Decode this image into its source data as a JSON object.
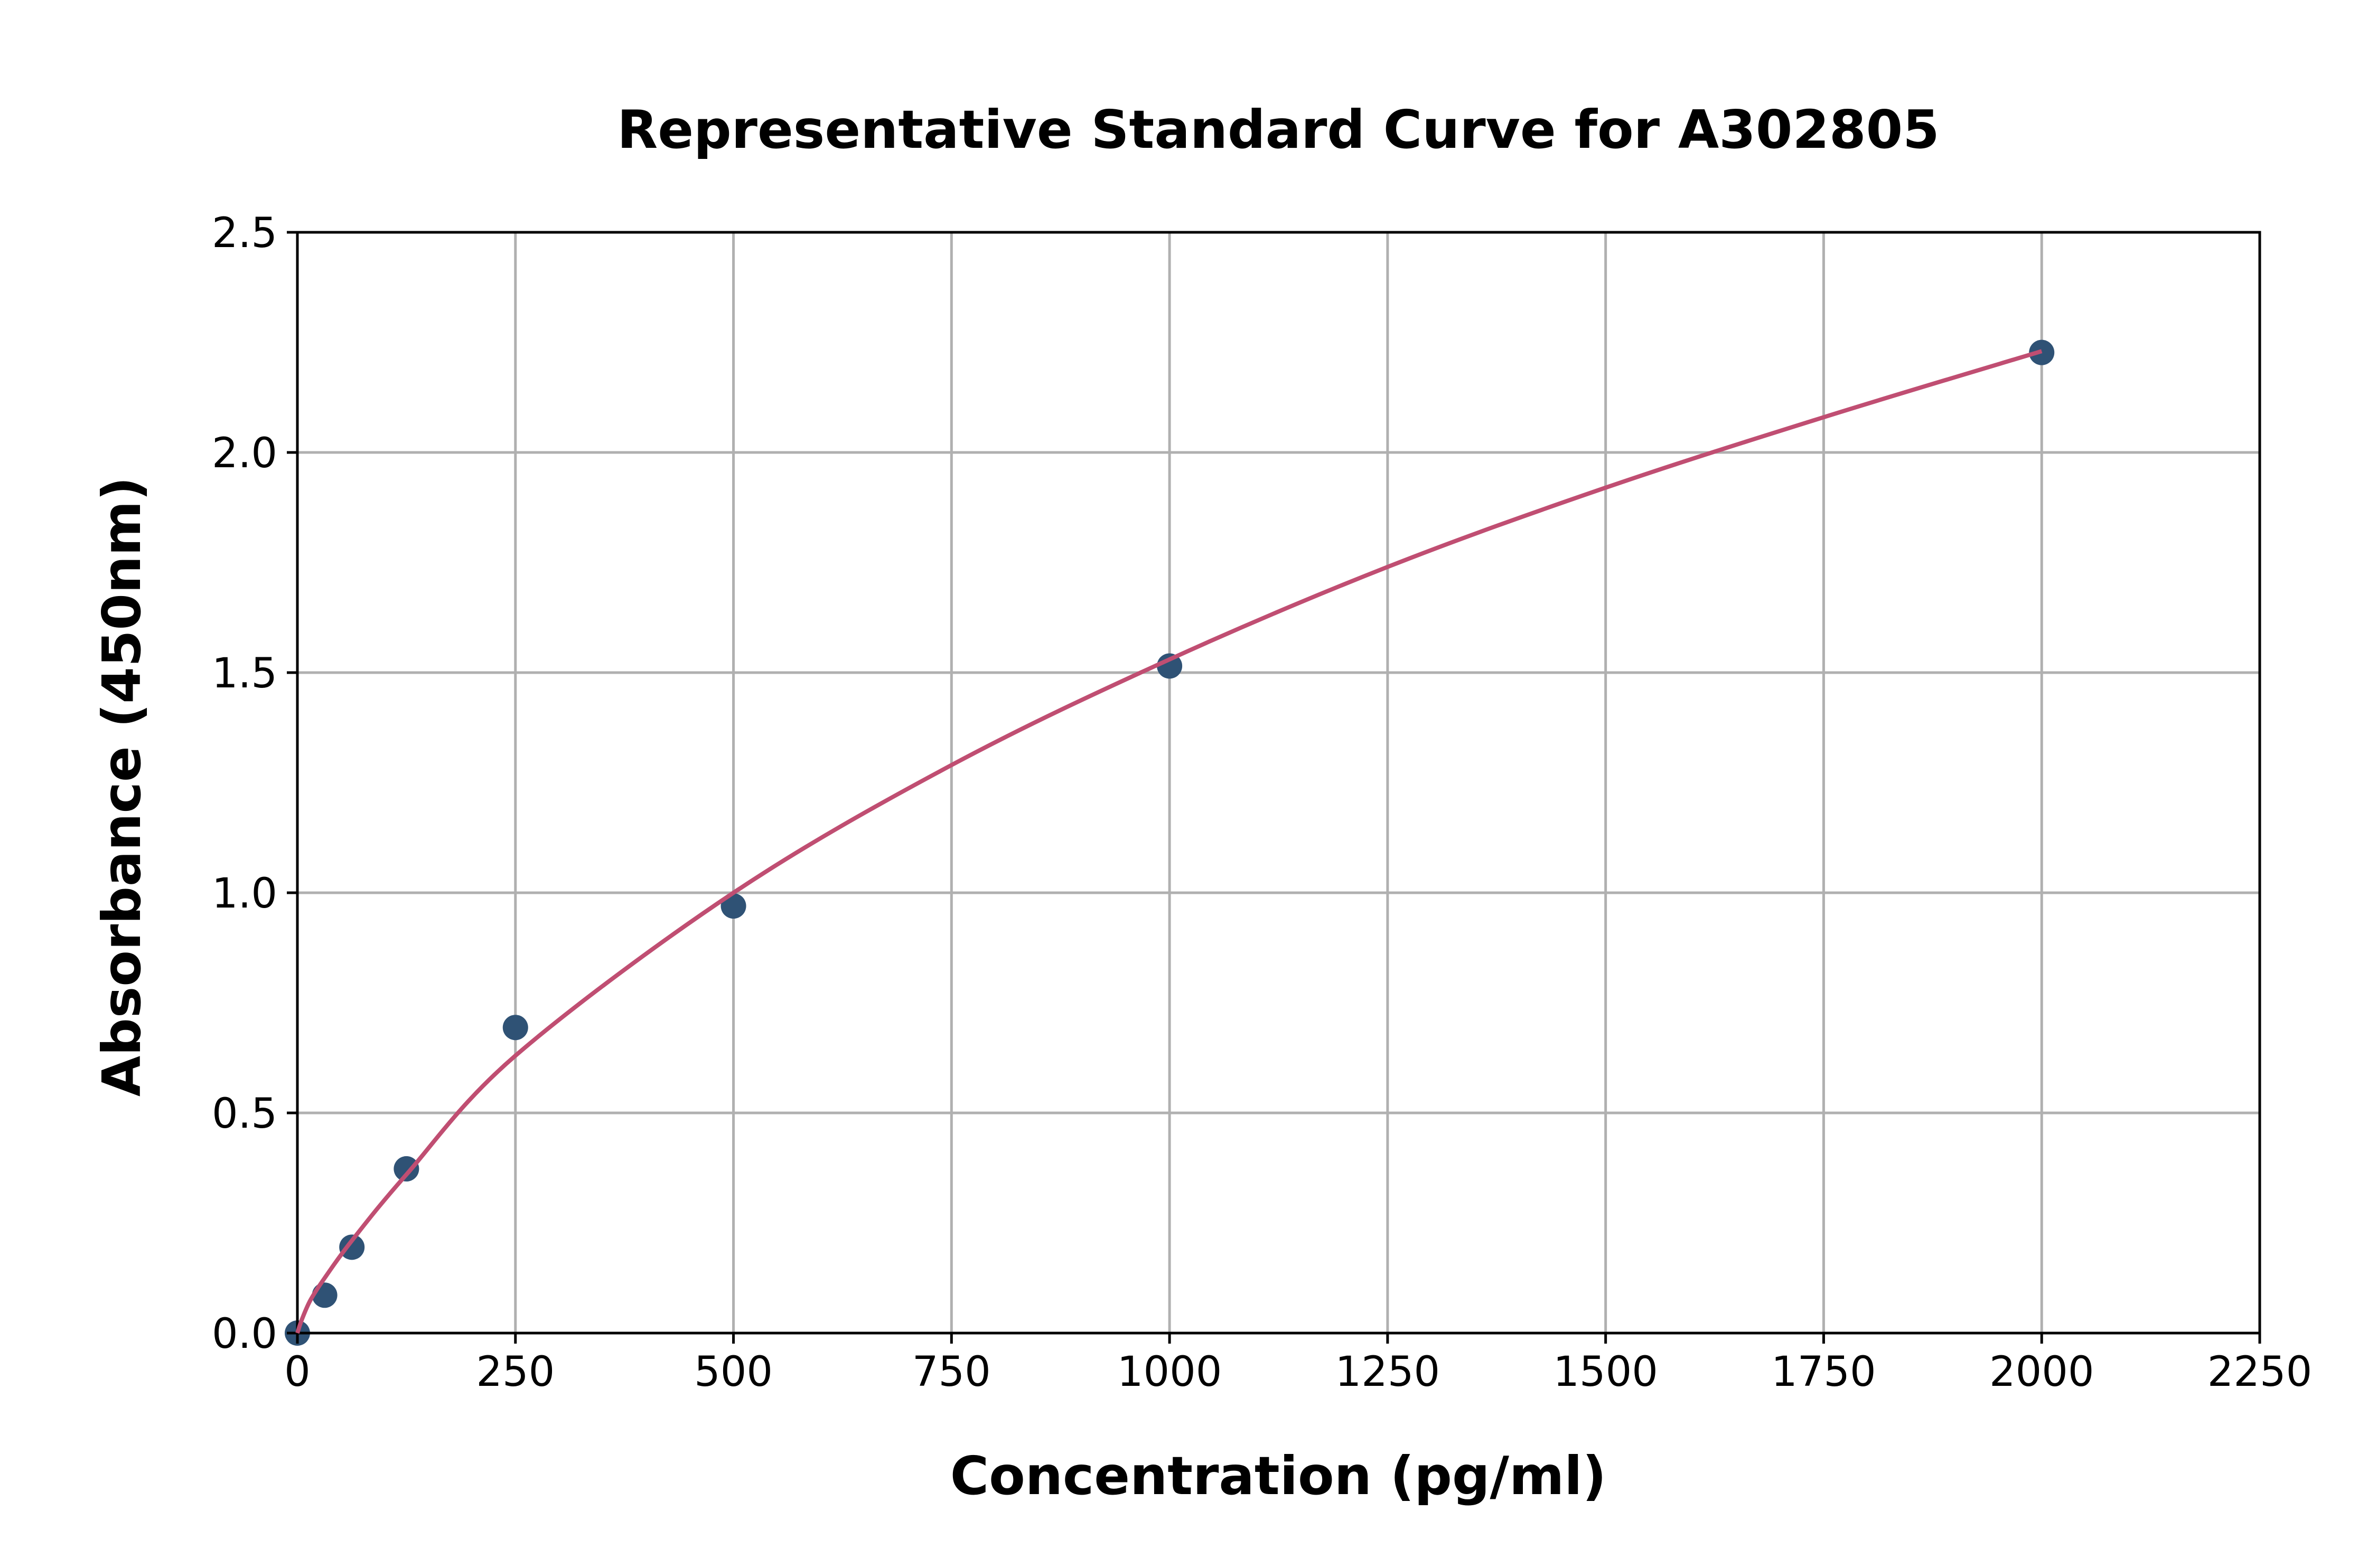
{
  "chart_data": {
    "type": "scatter",
    "title": "Representative Standard Curve for A302805",
    "xlabel": "Concentration (pg/ml)",
    "ylabel": "Absorbance (450nm)",
    "xlim": [
      0,
      2250
    ],
    "ylim": [
      0,
      2.5
    ],
    "x_ticks": [
      "0",
      "250",
      "500",
      "750",
      "1000",
      "1250",
      "1500",
      "1750",
      "2000",
      "2250"
    ],
    "y_ticks": [
      "0.0",
      "0.5",
      "1.0",
      "1.5",
      "2.0",
      "2.5"
    ],
    "grid": true,
    "points": {
      "x": [
        0,
        31.25,
        62.5,
        125,
        250,
        500,
        1000,
        2000
      ],
      "y": [
        0.0,
        0.086,
        0.195,
        0.373,
        0.694,
        0.97,
        1.515,
        2.227
      ]
    },
    "fit_curve": {
      "x": [
        0,
        5,
        15,
        31.25,
        62.5,
        125,
        250,
        500,
        750,
        1000,
        1250,
        1500,
        1750,
        2000
      ],
      "y": [
        0,
        0.03,
        0.075,
        0.125,
        0.21,
        0.36,
        0.63,
        1.0,
        1.29,
        1.53,
        1.74,
        1.92,
        2.08,
        2.23
      ]
    },
    "colors": {
      "points": "#2f5275",
      "curve": "#c04e72",
      "grid": "#b0b0b0"
    }
  }
}
